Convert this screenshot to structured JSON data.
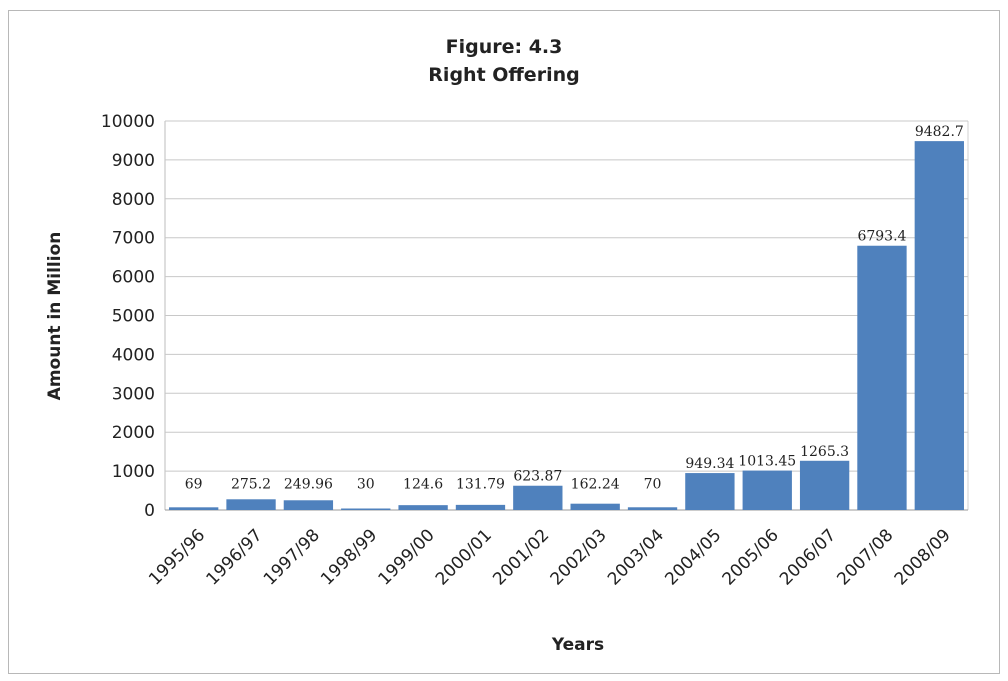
{
  "chart_data": {
    "type": "bar",
    "title": "Figure: 4.3",
    "subtitle": "Right Offering",
    "xlabel": "Years",
    "ylabel": "Amount in Million",
    "ylim": [
      0,
      10000
    ],
    "yticks": [
      "0",
      "1000",
      "2000",
      "3000",
      "4000",
      "5000",
      "6000",
      "7000",
      "8000",
      "9000",
      "10000"
    ],
    "grid": true,
    "bar_color": "#4f81bd",
    "categories": [
      "1995/96",
      "1996/97",
      "1997/98",
      "1998/99",
      "1999/00",
      "2000/01",
      "2001/02",
      "2002/03",
      "2003/04",
      "2004/05",
      "2005/06",
      "2006/07",
      "2007/08",
      "2008/09"
    ],
    "values": [
      69,
      275.2,
      249.96,
      30,
      124.6,
      131.79,
      623.87,
      162.24,
      70,
      949.34,
      1013.45,
      1265.3,
      6793.4,
      9482.7
    ],
    "data_labels": [
      "69",
      "275.2",
      "249.96",
      "30",
      "124.6",
      "131.79",
      "623.87",
      "162.24",
      "70",
      "949.34",
      "1013.45",
      "1265.3",
      "6793.4",
      "9482.7"
    ]
  }
}
